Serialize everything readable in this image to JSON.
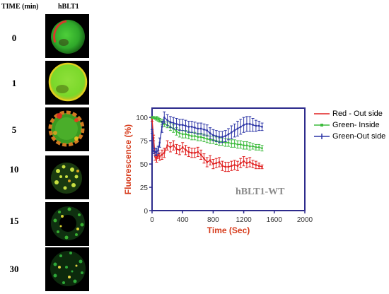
{
  "figure": {
    "time_header": "TIME (min)",
    "sample_header": "hBLT1",
    "panels": [
      {
        "time": "0"
      },
      {
        "time": "1"
      },
      {
        "time": "5"
      },
      {
        "time": "10"
      },
      {
        "time": "15"
      },
      {
        "time": "30"
      }
    ]
  },
  "colors": {
    "red": "#e02020",
    "green": "#3dbb3d",
    "blue": "#2c35a6",
    "axis": "#2d2b8c",
    "axis_label": "#d63a1a",
    "watermark": "#8a8a8a"
  },
  "chart_data": {
    "type": "line",
    "xlabel": "Time (Sec)",
    "ylabel": "Fluorescence (%)",
    "annotation": "hBLT1-WT",
    "xlim": [
      0,
      2000
    ],
    "ylim": [
      0,
      110
    ],
    "xticks": [
      "0",
      "400",
      "800",
      "1200",
      "1600",
      "2000"
    ],
    "yticks": [
      "0",
      "25",
      "50",
      "75",
      "100"
    ],
    "legend_position": "right",
    "series": [
      {
        "name": "Red - Out side",
        "color_key": "red",
        "x": [
          0,
          20,
          40,
          60,
          80,
          100,
          130,
          160,
          200,
          240,
          280,
          320,
          360,
          400,
          440,
          480,
          520,
          560,
          600,
          640,
          680,
          720,
          760,
          800,
          840,
          880,
          920,
          960,
          1000,
          1040,
          1080,
          1120,
          1160,
          1200,
          1240,
          1280,
          1320,
          1360,
          1400,
          1440
        ],
        "y": [
          98,
          78,
          58,
          56,
          60,
          58,
          60,
          62,
          70,
          68,
          70,
          66,
          65,
          68,
          65,
          63,
          62,
          62,
          63,
          60,
          56,
          52,
          54,
          50,
          51,
          52,
          48,
          47,
          47,
          48,
          49,
          48,
          51,
          53,
          51,
          52,
          50,
          49,
          48,
          47
        ],
        "err": [
          2,
          3,
          4,
          4,
          4,
          4,
          5,
          5,
          5,
          5,
          5,
          5,
          5,
          5,
          5,
          5,
          5,
          5,
          5,
          5,
          5,
          5,
          5,
          5,
          5,
          5,
          5,
          5,
          5,
          5,
          5,
          5,
          5,
          5,
          5,
          5,
          4,
          4,
          3,
          2
        ]
      },
      {
        "name": "Green- Inside",
        "color_key": "green",
        "x": [
          0,
          20,
          40,
          60,
          80,
          100,
          130,
          160,
          200,
          240,
          280,
          320,
          360,
          400,
          440,
          480,
          520,
          560,
          600,
          640,
          680,
          720,
          760,
          800,
          840,
          880,
          920,
          960,
          1000,
          1040,
          1080,
          1120,
          1160,
          1200,
          1240,
          1280,
          1320,
          1360,
          1400,
          1440
        ],
        "y": [
          100,
          100,
          99,
          99,
          98,
          97,
          95,
          93,
          92,
          90,
          88,
          85,
          83,
          82,
          82,
          81,
          80,
          80,
          79,
          79,
          78,
          77,
          76,
          76,
          75,
          74,
          74,
          73,
          73,
          72,
          72,
          71,
          71,
          70,
          70,
          69,
          69,
          68,
          68,
          67
        ],
        "err": [
          1,
          1,
          1,
          2,
          2,
          2,
          3,
          3,
          3,
          4,
          4,
          4,
          4,
          4,
          4,
          4,
          4,
          4,
          4,
          4,
          4,
          4,
          4,
          4,
          4,
          4,
          4,
          4,
          4,
          4,
          4,
          4,
          4,
          4,
          4,
          4,
          3,
          3,
          3,
          3
        ]
      },
      {
        "name": "Green-Out side",
        "color_key": "blue",
        "x": [
          0,
          20,
          40,
          60,
          80,
          100,
          130,
          160,
          200,
          240,
          280,
          320,
          360,
          400,
          440,
          480,
          520,
          560,
          600,
          640,
          680,
          720,
          760,
          800,
          840,
          880,
          920,
          960,
          1000,
          1040,
          1080,
          1120,
          1160,
          1200,
          1240,
          1280,
          1320,
          1360,
          1400,
          1440
        ],
        "y": [
          85,
          64,
          63,
          63,
          65,
          73,
          90,
          100,
          97,
          95,
          94,
          93,
          92,
          92,
          91,
          90,
          90,
          89,
          88,
          88,
          87,
          86,
          83,
          81,
          80,
          79,
          79,
          80,
          82,
          84,
          86,
          88,
          90,
          92,
          93,
          93,
          92,
          91,
          91,
          90
        ],
        "err": [
          2,
          3,
          4,
          4,
          4,
          5,
          6,
          6,
          6,
          6,
          6,
          6,
          6,
          6,
          6,
          6,
          6,
          6,
          6,
          6,
          6,
          6,
          6,
          6,
          6,
          6,
          6,
          6,
          6,
          7,
          7,
          8,
          8,
          8,
          8,
          8,
          7,
          6,
          5,
          4
        ]
      }
    ]
  }
}
